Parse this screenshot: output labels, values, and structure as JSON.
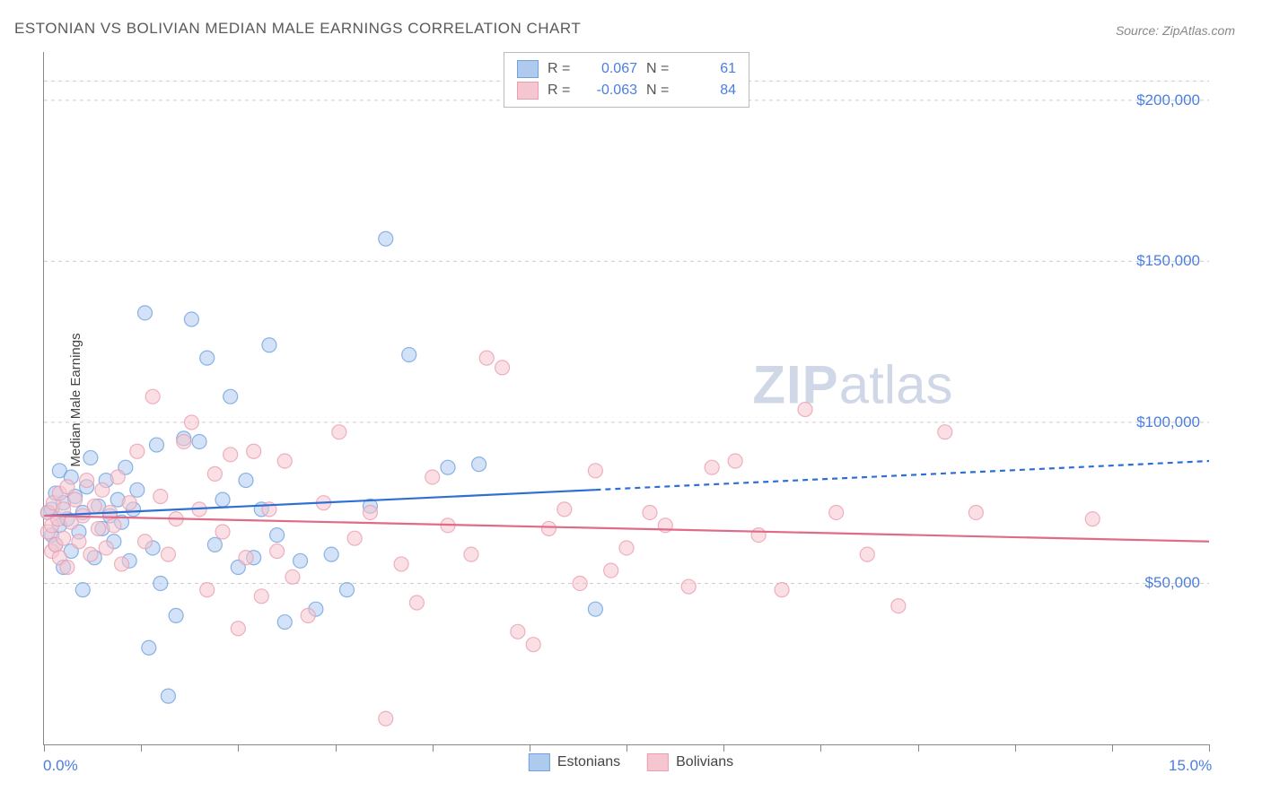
{
  "title": "ESTONIAN VS BOLIVIAN MEDIAN MALE EARNINGS CORRELATION CHART",
  "source": "Source: ZipAtlas.com",
  "ylabel": "Median Male Earnings",
  "watermark_zip": "ZIP",
  "watermark_atlas": "atlas",
  "chart": {
    "type": "scatter",
    "background_color": "#ffffff",
    "grid_color": "#cccccc",
    "axis_color": "#888888",
    "tick_label_color": "#4b7ee0",
    "text_color": "#444444",
    "title_fontsize": 17,
    "tick_fontsize": 17,
    "label_fontsize": 15,
    "xlim": [
      0,
      15
    ],
    "ylim": [
      0,
      215000
    ],
    "y_gridlines": [
      50000,
      100000,
      150000,
      200000
    ],
    "y_gridlines_visible_top": 206000,
    "ytick_labels": [
      "$50,000",
      "$100,000",
      "$150,000",
      "$200,000"
    ],
    "x_tick_positions": [
      0,
      1.25,
      2.5,
      3.75,
      5,
      6.25,
      7.5,
      8.75,
      10,
      11.25,
      12.5,
      13.75,
      15
    ],
    "xtick_left": "0.0%",
    "xtick_right": "15.0%",
    "marker_radius": 8,
    "marker_opacity": 0.55,
    "marker_stroke_width": 1.2,
    "trend_line_width": 2.2
  },
  "legend_top": {
    "rows": [
      {
        "swatch_fill": "#aecbee",
        "swatch_stroke": "#6fa3e0",
        "r_label": "R =",
        "r_value": "0.067",
        "n_label": "N =",
        "n_value": "61"
      },
      {
        "swatch_fill": "#f6c6d0",
        "swatch_stroke": "#eb9eb0",
        "r_label": "R =",
        "r_value": "-0.063",
        "n_label": "N =",
        "n_value": "84"
      }
    ]
  },
  "legend_bottom": {
    "items": [
      {
        "swatch_fill": "#aecbee",
        "swatch_stroke": "#6fa3e0",
        "label": "Estonians"
      },
      {
        "swatch_fill": "#f6c6d0",
        "swatch_stroke": "#eb9eb0",
        "label": "Bolivians"
      }
    ]
  },
  "series": [
    {
      "name": "Estonians",
      "fill": "#aecbee",
      "stroke": "#6fa3e0",
      "trend_color": "#2e6fd6",
      "trend_solid_xmax": 7.1,
      "trend": {
        "y_at_x0": 71000,
        "y_at_x15": 88000
      },
      "points": [
        [
          0.05,
          72000
        ],
        [
          0.1,
          65000
        ],
        [
          0.1,
          73000
        ],
        [
          0.15,
          62000
        ],
        [
          0.15,
          78000
        ],
        [
          0.2,
          85000
        ],
        [
          0.2,
          68000
        ],
        [
          0.25,
          55000
        ],
        [
          0.25,
          75000
        ],
        [
          0.3,
          70000
        ],
        [
          0.35,
          83000
        ],
        [
          0.35,
          60000
        ],
        [
          0.4,
          77000
        ],
        [
          0.45,
          66000
        ],
        [
          0.5,
          72000
        ],
        [
          0.5,
          48000
        ],
        [
          0.55,
          80000
        ],
        [
          0.6,
          89000
        ],
        [
          0.65,
          58000
        ],
        [
          0.7,
          74000
        ],
        [
          0.75,
          67000
        ],
        [
          0.8,
          82000
        ],
        [
          0.85,
          71000
        ],
        [
          0.9,
          63000
        ],
        [
          0.95,
          76000
        ],
        [
          1.0,
          69000
        ],
        [
          1.05,
          86000
        ],
        [
          1.1,
          57000
        ],
        [
          1.15,
          73000
        ],
        [
          1.2,
          79000
        ],
        [
          1.3,
          134000
        ],
        [
          1.35,
          30000
        ],
        [
          1.4,
          61000
        ],
        [
          1.45,
          93000
        ],
        [
          1.5,
          50000
        ],
        [
          1.6,
          15000
        ],
        [
          1.7,
          40000
        ],
        [
          1.8,
          95000
        ],
        [
          1.9,
          132000
        ],
        [
          2.0,
          94000
        ],
        [
          2.1,
          120000
        ],
        [
          2.2,
          62000
        ],
        [
          2.3,
          76000
        ],
        [
          2.4,
          108000
        ],
        [
          2.5,
          55000
        ],
        [
          2.6,
          82000
        ],
        [
          2.7,
          58000
        ],
        [
          2.8,
          73000
        ],
        [
          2.9,
          124000
        ],
        [
          3.0,
          65000
        ],
        [
          3.1,
          38000
        ],
        [
          3.3,
          57000
        ],
        [
          3.5,
          42000
        ],
        [
          3.7,
          59000
        ],
        [
          3.9,
          48000
        ],
        [
          4.2,
          74000
        ],
        [
          4.4,
          157000
        ],
        [
          4.7,
          121000
        ],
        [
          5.2,
          86000
        ],
        [
          5.6,
          87000
        ],
        [
          7.1,
          42000
        ]
      ]
    },
    {
      "name": "Bolivians",
      "fill": "#f6c6d0",
      "stroke": "#eb9eb0",
      "trend_color": "#e06b87",
      "trend_solid_xmax": 15,
      "trend": {
        "y_at_x0": 71000,
        "y_at_x15": 63000
      },
      "points": [
        [
          0.05,
          66000
        ],
        [
          0.05,
          72000
        ],
        [
          0.1,
          60000
        ],
        [
          0.1,
          68000
        ],
        [
          0.12,
          75000
        ],
        [
          0.15,
          62000
        ],
        [
          0.18,
          70000
        ],
        [
          0.2,
          78000
        ],
        [
          0.2,
          58000
        ],
        [
          0.25,
          64000
        ],
        [
          0.25,
          73000
        ],
        [
          0.3,
          80000
        ],
        [
          0.3,
          55000
        ],
        [
          0.35,
          69000
        ],
        [
          0.4,
          76000
        ],
        [
          0.45,
          63000
        ],
        [
          0.5,
          71000
        ],
        [
          0.55,
          82000
        ],
        [
          0.6,
          59000
        ],
        [
          0.65,
          74000
        ],
        [
          0.7,
          67000
        ],
        [
          0.75,
          79000
        ],
        [
          0.8,
          61000
        ],
        [
          0.85,
          72000
        ],
        [
          0.9,
          68000
        ],
        [
          0.95,
          83000
        ],
        [
          1.0,
          56000
        ],
        [
          1.1,
          75000
        ],
        [
          1.2,
          91000
        ],
        [
          1.3,
          63000
        ],
        [
          1.4,
          108000
        ],
        [
          1.5,
          77000
        ],
        [
          1.6,
          59000
        ],
        [
          1.7,
          70000
        ],
        [
          1.8,
          94000
        ],
        [
          1.9,
          100000
        ],
        [
          2.0,
          73000
        ],
        [
          2.1,
          48000
        ],
        [
          2.2,
          84000
        ],
        [
          2.3,
          66000
        ],
        [
          2.4,
          90000
        ],
        [
          2.5,
          36000
        ],
        [
          2.6,
          58000
        ],
        [
          2.7,
          91000
        ],
        [
          2.8,
          46000
        ],
        [
          2.9,
          73000
        ],
        [
          3.0,
          60000
        ],
        [
          3.1,
          88000
        ],
        [
          3.2,
          52000
        ],
        [
          3.4,
          40000
        ],
        [
          3.6,
          75000
        ],
        [
          3.8,
          97000
        ],
        [
          4.0,
          64000
        ],
        [
          4.2,
          72000
        ],
        [
          4.4,
          8000
        ],
        [
          4.6,
          56000
        ],
        [
          4.8,
          44000
        ],
        [
          5.0,
          83000
        ],
        [
          5.2,
          68000
        ],
        [
          5.5,
          59000
        ],
        [
          5.7,
          120000
        ],
        [
          5.9,
          117000
        ],
        [
          6.1,
          35000
        ],
        [
          6.3,
          31000
        ],
        [
          6.5,
          67000
        ],
        [
          6.7,
          73000
        ],
        [
          6.9,
          50000
        ],
        [
          7.1,
          85000
        ],
        [
          7.3,
          54000
        ],
        [
          7.5,
          61000
        ],
        [
          7.8,
          72000
        ],
        [
          8.0,
          68000
        ],
        [
          8.3,
          49000
        ],
        [
          8.6,
          86000
        ],
        [
          8.9,
          88000
        ],
        [
          9.2,
          65000
        ],
        [
          9.5,
          48000
        ],
        [
          9.8,
          104000
        ],
        [
          10.2,
          72000
        ],
        [
          10.6,
          59000
        ],
        [
          11.0,
          43000
        ],
        [
          11.6,
          97000
        ],
        [
          12.0,
          72000
        ],
        [
          13.5,
          70000
        ]
      ]
    }
  ]
}
